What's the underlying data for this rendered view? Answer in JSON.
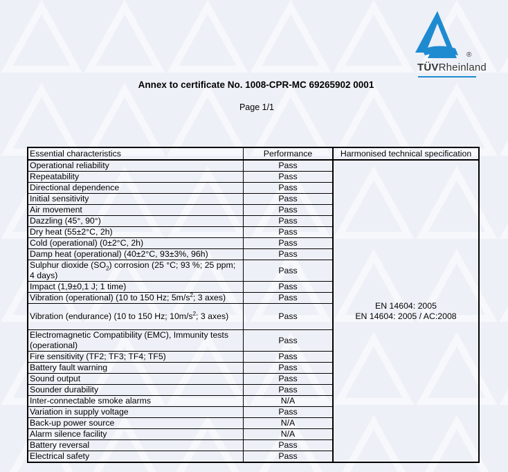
{
  "logo": {
    "brand_bold": "TÜV",
    "brand_rest": "Rheinland",
    "registered": "®",
    "color": "#1e8bd1"
  },
  "title": "Annex to certificate No. 1008-CPR-MC 69265902 0001",
  "page": "Page 1/1",
  "table": {
    "headers": [
      "Essential characteristics",
      "Performance",
      "Harmonised technical specification"
    ],
    "spec_lines": [
      "EN 14604: 2005",
      "EN 14604: 2005 / AC:2008"
    ],
    "rows": [
      {
        "name": "Operational reliability",
        "perf": "Pass"
      },
      {
        "name": "Repeatability",
        "perf": "Pass"
      },
      {
        "name": "Directional dependence",
        "perf": "Pass"
      },
      {
        "name": "Initial sensitivity",
        "perf": "Pass"
      },
      {
        "name": "Air movement",
        "perf": "Pass"
      },
      {
        "name": "Dazzling (45°, 90°)",
        "perf": "Pass"
      },
      {
        "name": "Dry heat (55±2°C, 2h)",
        "perf": "Pass"
      },
      {
        "name": "Cold (operational) (0±2°C, 2h)",
        "perf": "Pass"
      },
      {
        "name": "Damp heat (operational) (40±2°C, 93±3%, 96h)",
        "perf": "Pass"
      },
      {
        "name_pre": "Sulphur dioxide (SO",
        "name_sub": "2",
        "name_post": ") corrosion (25 °C; 93 %; 25 ppm; 4 days)",
        "perf": "Pass"
      },
      {
        "name": "Impact (1,9±0,1 J; 1 time)",
        "perf": "Pass"
      },
      {
        "name_pre": "Vibration (operational) (10 to 150 Hz; 5m/s",
        "name_sup": "2",
        "name_post": "; 3 axes)",
        "perf": "Pass"
      },
      {
        "name_pre": "Vibration (endurance) (10 to 150 Hz; 10m/s",
        "name_sup": "2",
        "name_post": "; 3 axes)",
        "perf": "Pass"
      },
      {
        "name": "Electromagnetic Compatibility (EMC), Immunity tests (operational)",
        "perf": "Pass"
      },
      {
        "name": "Fire sensitivity (TF2; TF3; TF4; TF5)",
        "perf": "Pass"
      },
      {
        "name": "Battery fault warning",
        "perf": "Pass"
      },
      {
        "name": "Sound output",
        "perf": "Pass"
      },
      {
        "name": "Sounder durability",
        "perf": "Pass"
      },
      {
        "name": "Inter-connectable smoke alarms",
        "perf": "N/A"
      },
      {
        "name": "Variation in supply voltage",
        "perf": "Pass"
      },
      {
        "name": "Back-up power source",
        "perf": "N/A"
      },
      {
        "name": "Alarm silence facility",
        "perf": "N/A"
      },
      {
        "name": "Battery reversal",
        "perf": "Pass"
      },
      {
        "name": "Electrical safety",
        "perf": "Pass"
      }
    ]
  }
}
